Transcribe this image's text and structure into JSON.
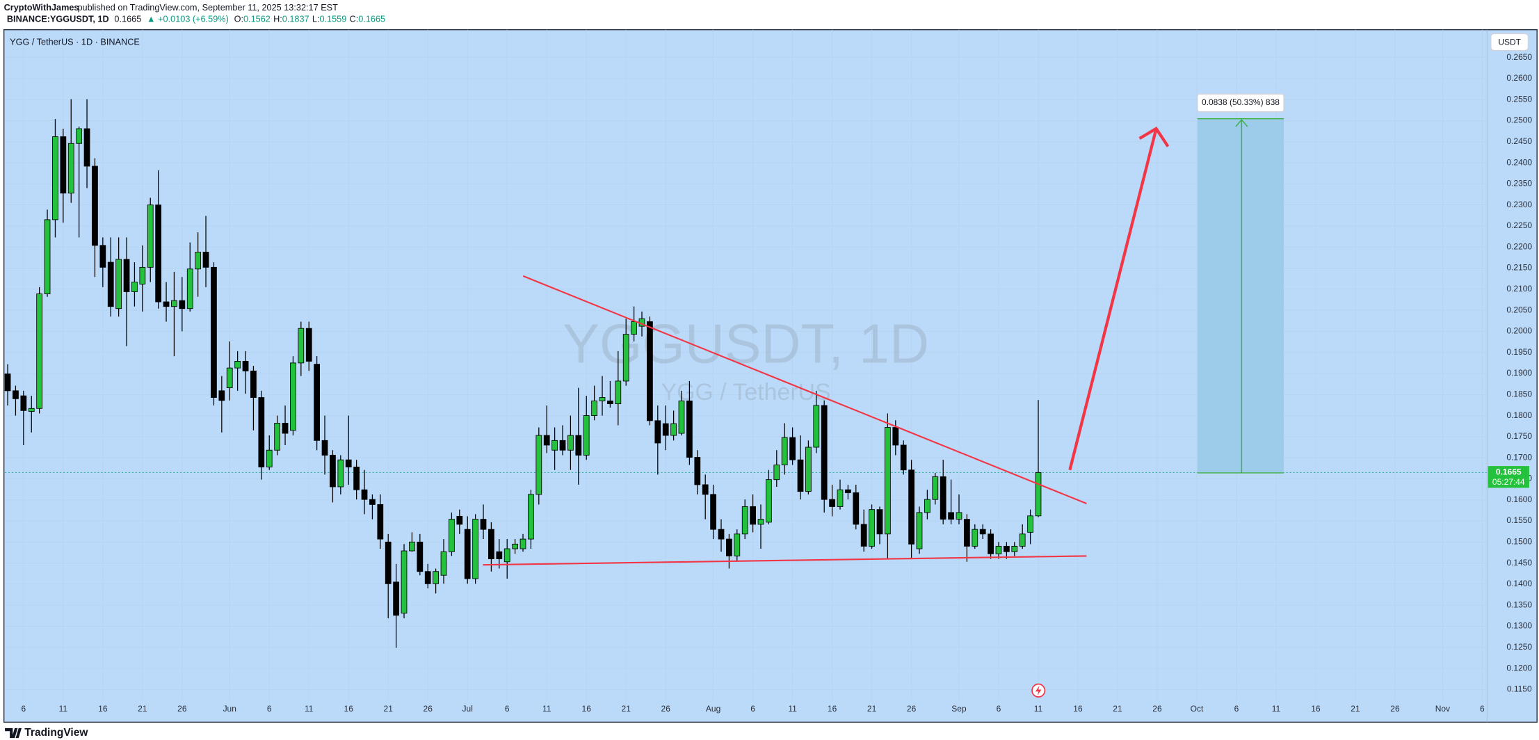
{
  "header": {
    "author": "CryptoWithJames",
    "published": "published on TradingView.com, September 11, 2025 13:32:17 EST",
    "symbol": "BINANCE:YGGUSDT, 1D",
    "last": "0.1665",
    "change": "▲ +0.0103 (+6.59%)",
    "quote": [
      {
        "label": "O:",
        "value": "0.1562"
      },
      {
        "label": "H:",
        "value": "0.1837"
      },
      {
        "label": "L:",
        "value": "0.1559"
      },
      {
        "label": "C:",
        "value": "0.1665"
      }
    ]
  },
  "chart_data": {
    "type": "candlestick",
    "legend": "YGG / TetherUS · 1D · BINANCE",
    "watermark": "YGGUSDT, 1D",
    "watermark_sub": "YGG / TetherUS",
    "currency": "USDT",
    "open": [
      0.1899,
      0.1859,
      0.1847,
      0.181,
      0.1817,
      0.2089,
      0.2265,
      0.2462,
      0.2328,
      0.2446,
      0.2481,
      0.2392,
      0.2204,
      0.2164,
      0.2054,
      0.2171,
      0.2094,
      0.2112,
      0.2152,
      0.23,
      0.207,
      0.2059,
      0.2073,
      0.2054,
      0.2148,
      0.2188,
      0.2152,
      0.1859,
      0.1866,
      0.1913,
      0.1929,
      0.1906,
      0.1843,
      0.1678,
      0.1718,
      0.1782,
      0.1765,
      0.1925,
      0.2007,
      0.1922,
      0.1741,
      0.1706,
      0.1631,
      0.1695,
      0.1678,
      0.1624,
      0.1601,
      0.1589,
      0.15,
      0.1405,
      0.1331,
      0.1479,
      0.15,
      0.143,
      0.1401,
      0.1421,
      0.1477,
      0.1561,
      0.153,
      0.1413,
      0.1554,
      0.153,
      0.1477,
      0.1453,
      0.1484,
      0.1484,
      0.1507,
      0.1613,
      0.1753,
      0.1718,
      0.1741,
      0.1718,
      0.1753,
      0.1706,
      0.18,
      0.1835,
      0.1835,
      0.1828,
      0.1882,
      0.1993,
      0.2012,
      0.2023,
      0.1788,
      0.1781,
      0.1753,
      0.1758,
      0.1835,
      0.1701,
      0.1636,
      0.1613,
      0.153,
      0.1507,
      0.1467,
      0.1519,
      0.1584,
      0.1542,
      0.1547,
      0.1648,
      0.1683,
      0.1748,
      0.1695,
      0.162,
      0.1725,
      0.1824,
      0.1601,
      0.1584,
      0.1624,
      0.1617,
      0.1542,
      0.149,
      0.1577,
      0.1519,
      0.1772,
      0.173,
      0.1671,
      0.1484,
      0.157,
      0.1601,
      0.1655,
      0.157,
      0.1554,
      0.1554,
      0.149,
      0.153,
      0.1519,
      0.1472,
      0.149,
      0.1477,
      0.149,
      0.1523,
      0.1562
    ],
    "high": [
      0.1922,
      0.1871,
      0.1859,
      0.1847,
      0.2105,
      0.2289,
      0.2504,
      0.2481,
      0.2551,
      0.2486,
      0.2551,
      0.2411,
      0.2223,
      0.2223,
      0.2223,
      0.2223,
      0.2164,
      0.2204,
      0.2317,
      0.2382,
      0.2117,
      0.2141,
      0.2129,
      0.2211,
      0.2235,
      0.2274,
      0.2164,
      0.1894,
      0.1976,
      0.1953,
      0.1953,
      0.1918,
      0.1859,
      0.1753,
      0.18,
      0.1824,
      0.1941,
      0.2023,
      0.2023,
      0.1941,
      0.18,
      0.1718,
      0.1706,
      0.18,
      0.1695,
      0.1671,
      0.1613,
      0.1613,
      0.1519,
      0.1448,
      0.1495,
      0.1523,
      0.1519,
      0.1448,
      0.1437,
      0.1507,
      0.157,
      0.1577,
      0.1561,
      0.1566,
      0.1589,
      0.1547,
      0.1507,
      0.1507,
      0.1507,
      0.1519,
      0.1624,
      0.1772,
      0.1824,
      0.1772,
      0.1777,
      0.18,
      0.1866,
      0.1847,
      0.1871,
      0.1894,
      0.1882,
      0.1953,
      0.203,
      0.2059,
      0.2047,
      0.2035,
      0.1824,
      0.1824,
      0.1812,
      0.1859,
      0.1882,
      0.1718,
      0.166,
      0.1636,
      0.1554,
      0.1519,
      0.153,
      0.1601,
      0.1613,
      0.1589,
      0.1671,
      0.1718,
      0.1782,
      0.1772,
      0.1753,
      0.1741,
      0.1859,
      0.1836,
      0.1636,
      0.1648,
      0.1636,
      0.1636,
      0.1577,
      0.1589,
      0.1584,
      0.1805,
      0.1789,
      0.1741,
      0.1695,
      0.1584,
      0.1624,
      0.1664,
      0.1695,
      0.1648,
      0.1613,
      0.1566,
      0.1542,
      0.1542,
      0.153,
      0.15,
      0.15,
      0.15,
      0.1542,
      0.1577,
      0.1837
    ],
    "low": [
      0.1824,
      0.18,
      0.173,
      0.176,
      0.1805,
      0.2082,
      0.2223,
      0.2258,
      0.2305,
      0.2223,
      0.234,
      0.2129,
      0.2105,
      0.2035,
      0.2035,
      0.1965,
      0.2059,
      0.2047,
      0.2117,
      0.2054,
      0.2023,
      0.1941,
      0.2,
      0.2047,
      0.2082,
      0.2105,
      0.1824,
      0.176,
      0.1836,
      0.1859,
      0.1852,
      0.1765,
      0.1648,
      0.1671,
      0.1706,
      0.173,
      0.1753,
      0.1894,
      0.1906,
      0.1718,
      0.166,
      0.1594,
      0.1613,
      0.1636,
      0.1601,
      0.1566,
      0.1554,
      0.1484,
      0.1319,
      0.1249,
      0.1319,
      0.1477,
      0.1421,
      0.139,
      0.1378,
      0.1401,
      0.1467,
      0.1519,
      0.1401,
      0.1401,
      0.1507,
      0.143,
      0.1437,
      0.1413,
      0.1472,
      0.1477,
      0.1484,
      0.1589,
      0.1711,
      0.1671,
      0.1706,
      0.1671,
      0.1636,
      0.1695,
      0.1789,
      0.18,
      0.1819,
      0.1777,
      0.1871,
      0.1976,
      0.1988,
      0.1777,
      0.166,
      0.1718,
      0.1741,
      0.1753,
      0.1683,
      0.1613,
      0.1554,
      0.1507,
      0.1477,
      0.1437,
      0.1453,
      0.1507,
      0.1523,
      0.1484,
      0.1542,
      0.1631,
      0.166,
      0.1683,
      0.1601,
      0.1613,
      0.1711,
      0.157,
      0.1561,
      0.1577,
      0.1601,
      0.153,
      0.1477,
      0.1484,
      0.1495,
      0.146,
      0.1706,
      0.166,
      0.146,
      0.1472,
      0.1554,
      0.1589,
      0.1542,
      0.1542,
      0.1542,
      0.1453,
      0.1484,
      0.1507,
      0.146,
      0.146,
      0.146,
      0.1467,
      0.1484,
      0.1495,
      0.1559
    ],
    "close": [
      0.1859,
      0.184,
      0.1812,
      0.1817,
      0.2089,
      0.2265,
      0.2462,
      0.2328,
      0.2446,
      0.2481,
      0.2392,
      0.2204,
      0.2152,
      0.2059,
      0.2171,
      0.2094,
      0.2117,
      0.2152,
      0.23,
      0.207,
      0.2059,
      0.2073,
      0.2054,
      0.2148,
      0.2188,
      0.2152,
      0.1843,
      0.1836,
      0.1913,
      0.1929,
      0.1906,
      0.1843,
      0.1678,
      0.1718,
      0.1782,
      0.1758,
      0.1925,
      0.2007,
      0.1929,
      0.1741,
      0.1706,
      0.1631,
      0.1695,
      0.1678,
      0.1624,
      0.1601,
      0.1589,
      0.1507,
      0.1401,
      0.1326,
      0.1479,
      0.15,
      0.143,
      0.1401,
      0.143,
      0.1477,
      0.1554,
      0.1542,
      0.1413,
      0.1554,
      0.153,
      0.146,
      0.146,
      0.1484,
      0.1495,
      0.1507,
      0.1613,
      0.1753,
      0.173,
      0.1741,
      0.1718,
      0.1753,
      0.1706,
      0.18,
      0.1835,
      0.1843,
      0.1828,
      0.1882,
      0.1993,
      0.2023,
      0.203,
      0.1788,
      0.1735,
      0.1753,
      0.1781,
      0.1835,
      0.1701,
      0.1636,
      0.1613,
      0.153,
      0.1507,
      0.1467,
      0.1519,
      0.1584,
      0.1542,
      0.1554,
      0.1648,
      0.1683,
      0.1748,
      0.1695,
      0.162,
      0.1725,
      0.1824,
      0.1601,
      0.1584,
      0.1624,
      0.1617,
      0.1542,
      0.149,
      0.1577,
      0.1519,
      0.1772,
      0.173,
      0.1671,
      0.1495,
      0.157,
      0.1601,
      0.1655,
      0.1554,
      0.1554,
      0.157,
      0.149,
      0.153,
      0.1519,
      0.1472,
      0.149,
      0.1477,
      0.149,
      0.1519,
      0.1562,
      0.1665
    ],
    "up_color": "#24c23c",
    "down_color": "#000000",
    "background": "#bbdaf9",
    "ylim": [
      0.1124,
      0.2716
    ],
    "yticks": [
      {
        "value": 0.115,
        "label": "0.1150"
      },
      {
        "value": 0.12,
        "label": "0.1200"
      },
      {
        "value": 0.125,
        "label": "0.1250"
      },
      {
        "value": 0.13,
        "label": "0.1300"
      },
      {
        "value": 0.135,
        "label": "0.1350"
      },
      {
        "value": 0.14,
        "label": "0.1400"
      },
      {
        "value": 0.145,
        "label": "0.1450"
      },
      {
        "value": 0.15,
        "label": "0.1500"
      },
      {
        "value": 0.155,
        "label": "0.1550"
      },
      {
        "value": 0.16,
        "label": "0.1600"
      },
      {
        "value": 0.165,
        "label": "0.1650"
      },
      {
        "value": 0.17,
        "label": "0.1700"
      },
      {
        "value": 0.175,
        "label": "0.1750"
      },
      {
        "value": 0.18,
        "label": "0.1800"
      },
      {
        "value": 0.185,
        "label": "0.1850"
      },
      {
        "value": 0.19,
        "label": "0.1900"
      },
      {
        "value": 0.195,
        "label": "0.1950"
      },
      {
        "value": 0.2,
        "label": "0.2000"
      },
      {
        "value": 0.205,
        "label": "0.2050"
      },
      {
        "value": 0.21,
        "label": "0.2100"
      },
      {
        "value": 0.215,
        "label": "0.2150"
      },
      {
        "value": 0.22,
        "label": "0.2200"
      },
      {
        "value": 0.225,
        "label": "0.2250"
      },
      {
        "value": 0.23,
        "label": "0.2300"
      },
      {
        "value": 0.235,
        "label": "0.2350"
      },
      {
        "value": 0.24,
        "label": "0.2400"
      },
      {
        "value": 0.245,
        "label": "0.2450"
      },
      {
        "value": 0.25,
        "label": "0.2500"
      },
      {
        "value": 0.255,
        "label": "0.2550"
      },
      {
        "value": 0.26,
        "label": "0.2600"
      },
      {
        "value": 0.265,
        "label": "0.2650"
      }
    ],
    "xlim": [
      -0.35,
      186.6
    ],
    "xticks": [
      {
        "value": 2,
        "label": "6"
      },
      {
        "value": 7,
        "label": "11"
      },
      {
        "value": 12,
        "label": "16"
      },
      {
        "value": 17,
        "label": "21"
      },
      {
        "value": 22,
        "label": "26"
      },
      {
        "value": 28,
        "label": "Jun"
      },
      {
        "value": 33,
        "label": "6"
      },
      {
        "value": 38,
        "label": "11"
      },
      {
        "value": 43,
        "label": "16"
      },
      {
        "value": 48,
        "label": "21"
      },
      {
        "value": 53,
        "label": "26"
      },
      {
        "value": 58,
        "label": "Jul"
      },
      {
        "value": 63,
        "label": "6"
      },
      {
        "value": 68,
        "label": "11"
      },
      {
        "value": 73,
        "label": "16"
      },
      {
        "value": 78,
        "label": "21"
      },
      {
        "value": 83,
        "label": "26"
      },
      {
        "value": 89,
        "label": "Aug"
      },
      {
        "value": 94,
        "label": "6"
      },
      {
        "value": 99,
        "label": "11"
      },
      {
        "value": 104,
        "label": "16"
      },
      {
        "value": 109,
        "label": "21"
      },
      {
        "value": 114,
        "label": "26"
      },
      {
        "value": 120,
        "label": "Sep"
      },
      {
        "value": 125,
        "label": "6"
      },
      {
        "value": 130,
        "label": "11"
      },
      {
        "value": 135,
        "label": "16"
      },
      {
        "value": 140,
        "label": "21"
      },
      {
        "value": 145,
        "label": "26"
      },
      {
        "value": 150,
        "label": "Oct"
      },
      {
        "value": 155,
        "label": "6"
      },
      {
        "value": 160,
        "label": "11"
      },
      {
        "value": 165,
        "label": "16"
      },
      {
        "value": 170,
        "label": "21"
      },
      {
        "value": 175,
        "label": "26"
      },
      {
        "value": 181,
        "label": "Nov"
      },
      {
        "value": 186,
        "label": "6"
      }
    ],
    "countdown": "05:27:44",
    "measure_label": "0.0838 (50.33%) 838"
  },
  "footer": {
    "brand": "TradingView"
  }
}
